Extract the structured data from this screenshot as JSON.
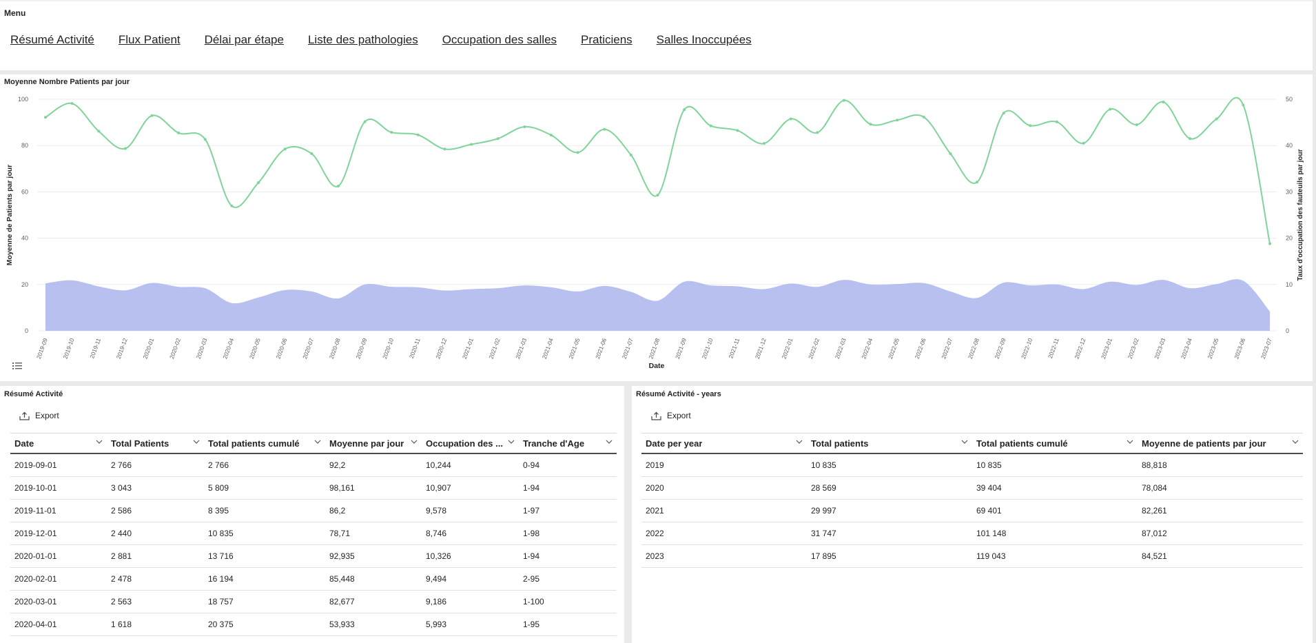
{
  "menu": {
    "title": "Menu",
    "links": [
      "Résumé Activité",
      "Flux Patient",
      "Délai par étape",
      "Liste des pathologies",
      "Occupation des salles",
      "Praticiens",
      "Salles Inoccupées"
    ]
  },
  "chart": {
    "title": "Moyenne Nombre Patients par jour"
  },
  "chart_data": {
    "type": "line",
    "title": "Moyenne Nombre Patients par jour",
    "xlabel": "Date",
    "ylabel": "Moyenne de Patients par jour",
    "y2label": "Taux d'occupation des fauteuils par jour",
    "ylim": [
      0,
      100
    ],
    "y2lim": [
      0,
      50
    ],
    "yticks": [
      0,
      20,
      40,
      60,
      80,
      100
    ],
    "y2ticks": [
      0,
      10,
      20,
      30,
      40,
      50
    ],
    "grid": true,
    "categories": [
      "2019-09",
      "2019-10",
      "2019-11",
      "2019-12",
      "2020-01",
      "2020-02",
      "2020-03",
      "2020-04",
      "2020-05",
      "2020-06",
      "2020-07",
      "2020-08",
      "2020-09",
      "2020-10",
      "2020-11",
      "2020-12",
      "2021-01",
      "2021-02",
      "2021-03",
      "2021-04",
      "2021-05",
      "2021-06",
      "2021-07",
      "2021-08",
      "2021-09",
      "2021-10",
      "2021-11",
      "2021-12",
      "2022-01",
      "2022-02",
      "2022-03",
      "2022-04",
      "2022-05",
      "2022-06",
      "2022-07",
      "2022-08",
      "2022-09",
      "2022-10",
      "2022-11",
      "2022-12",
      "2023-01",
      "2023-02",
      "2023-03",
      "2023-04",
      "2023-05",
      "2023-06",
      "2023-07"
    ],
    "series": [
      {
        "axis": "left",
        "kind": "line",
        "color": "#7fd49a",
        "values": [
          92.2,
          98.161,
          86.2,
          78.71,
          92.935,
          85.448,
          82.677,
          53.933,
          64,
          78.5,
          76.5,
          62.5,
          90.3,
          85.7,
          84.6,
          78.5,
          80.5,
          83,
          88.1,
          84.5,
          77,
          87,
          75.9,
          58.6,
          95.5,
          88.5,
          86.5,
          80.9,
          91.5,
          85.6,
          99.5,
          89.2,
          91,
          92.3,
          76.5,
          64.2,
          94,
          88.6,
          90.2,
          81,
          95.7,
          89,
          98.8,
          83,
          91.5,
          97.5,
          37.6
        ]
      },
      {
        "axis": "right",
        "kind": "area",
        "color": "#aab5ec",
        "values": [
          10.244,
          10.907,
          9.578,
          8.746,
          10.326,
          9.494,
          9.186,
          5.993,
          7.2,
          8.8,
          8.5,
          7,
          10,
          9.5,
          9.4,
          8.7,
          9,
          9.2,
          9.8,
          9.4,
          8.5,
          9.7,
          8.4,
          6.5,
          10.6,
          9.8,
          9.6,
          9,
          10.2,
          9.5,
          11,
          10,
          10.1,
          10.3,
          8.5,
          7.1,
          10.4,
          9.8,
          10,
          9,
          10.6,
          9.9,
          11,
          9.2,
          10.1,
          10.8,
          4.2
        ]
      }
    ]
  },
  "table1": {
    "title": "Résumé Activité",
    "export_label": "Export",
    "columns": [
      "Date",
      "Total Patients",
      "Total patients cumulé",
      "Moyenne par jour",
      "Occupation des ...",
      "Tranche d'Age"
    ],
    "rows": [
      [
        "2019-09-01",
        "2 766",
        "2 766",
        "92,2",
        "10,244",
        "0-94"
      ],
      [
        "2019-10-01",
        "3 043",
        "5 809",
        "98,161",
        "10,907",
        "1-94"
      ],
      [
        "2019-11-01",
        "2 586",
        "8 395",
        "86,2",
        "9,578",
        "1-97"
      ],
      [
        "2019-12-01",
        "2 440",
        "10 835",
        "78,71",
        "8,746",
        "1-98"
      ],
      [
        "2020-01-01",
        "2 881",
        "13 716",
        "92,935",
        "10,326",
        "1-94"
      ],
      [
        "2020-02-01",
        "2 478",
        "16 194",
        "85,448",
        "9,494",
        "2-95"
      ],
      [
        "2020-03-01",
        "2 563",
        "18 757",
        "82,677",
        "9,186",
        "1-100"
      ],
      [
        "2020-04-01",
        "1 618",
        "20 375",
        "53,933",
        "5,993",
        "1-95"
      ]
    ]
  },
  "table2": {
    "title": "Résumé Activité - years",
    "export_label": "Export",
    "columns": [
      "Date per year",
      "Total patients",
      "Total patients cumulé",
      "Moyenne de patients par jour"
    ],
    "rows": [
      [
        "2019",
        "10 835",
        "10 835",
        "88,818"
      ],
      [
        "2020",
        "28 569",
        "39 404",
        "78,084"
      ],
      [
        "2021",
        "29 997",
        "69 401",
        "82,261"
      ],
      [
        "2022",
        "31 747",
        "101 148",
        "87,012"
      ],
      [
        "2023",
        "17 895",
        "119 043",
        "84,521"
      ]
    ]
  }
}
